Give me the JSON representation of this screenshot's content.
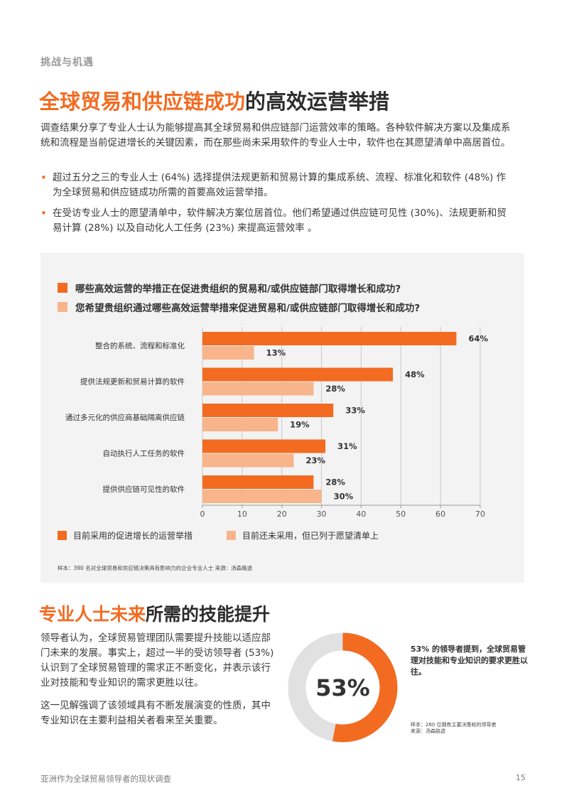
{
  "header": {
    "section_label": "挑战与机遇"
  },
  "title": {
    "highlight": "全球贸易和供应链成功",
    "rest": "的高效运营举措"
  },
  "intro": "调查结果分享了专业人士认为能够提高其全球贸易和供应链部门运营效率的策略。各种软件解决方案以及集成系统和流程是当前促进增长的关键因素，而在那些尚未采用软件的专业人士中，软件也在其愿望清单中高居首位。",
  "bullets": [
    "超过五分之三的专业人士 (64%) 选择提供法规更新和贸易计算的集成系统、流程、标准化和软件 (48%) 作为全球贸易和供应链成功所需的首要高效运营举措。",
    "在受访专业人士的愿望清单中，软件解决方案位居首位。他们希望通过供应链可见性 (30%)、法规更新和贸易计算 (28%) 以及自动化人工任务 (23%) 来提高运营效率 。"
  ],
  "chart_panel": {
    "question_1": "哪些高效运营的举措正在促进贵组织的贸易和/或供应链部门取得增长和成功?",
    "question_2": "您希望贵组织通过哪些高效运营举措来促进贸易和/或供应链部门取得增长和成功?",
    "source": "样本：390 名对全球贸易和供应链决策具有影响力的企业专业人士      来源：汤森路透"
  },
  "chart_data": {
    "type": "bar",
    "orientation": "horizontal",
    "categories": [
      "整合的系统、流程和标准化",
      "提供法规更新和贸易计算的软件",
      "通过多元化的供应商基础隔离供应链",
      "自动执行人工任务的软件",
      "提供供应链可见性的软件"
    ],
    "series": [
      {
        "name": "目前采用的促进增长的运营举措",
        "values": [
          64,
          48,
          33,
          31,
          28
        ],
        "labels": [
          "64%",
          "48%",
          "33%",
          "31%",
          "28%"
        ],
        "color": "#f26b21"
      },
      {
        "name": "目前还未采用，但已列于愿望清单上",
        "values": [
          13,
          28,
          19,
          23,
          30
        ],
        "labels": [
          "13%",
          "28%",
          "19%",
          "23%",
          "30%"
        ],
        "color": "#f8b48a"
      }
    ],
    "xlim": [
      0,
      70
    ],
    "xticks": [
      0,
      10,
      20,
      30,
      40,
      50,
      60,
      70
    ],
    "grid": true,
    "legend": "bottom"
  },
  "skills": {
    "title_highlight": "专业人士未来",
    "title_rest": "所需的技能提升",
    "para1": "领导者认为，全球贸易管理团队需要提升技能以适应部门未来的发展。事实上，超过一半的受访领导者 (53%) 认识到了全球贸易管理的需求正不断变化，并表示该行业对技能和专业知识的需求更胜以往。",
    "para2": "这一见解强调了该领域具有不断发展演变的性质，其中专业知识在主要利益相关者看来至关重要。",
    "donut_value": 53,
    "donut_label": "53%",
    "callout": "53% 的领导者提到，全球贸易管理对技能和专业知识的要求更胜以往。",
    "note_sample": "样本：260 位拥有主要决策权的领导者",
    "note_source": "来源：汤森路透"
  },
  "footer": {
    "left": "亚洲作为全球贸易领导者的现状调查",
    "page": "15"
  },
  "colors": {
    "accent": "#f26b21",
    "accent_light": "#f8b48a",
    "donut_track": "#e1e1e1",
    "panel_bg": "#f3f3f3"
  }
}
